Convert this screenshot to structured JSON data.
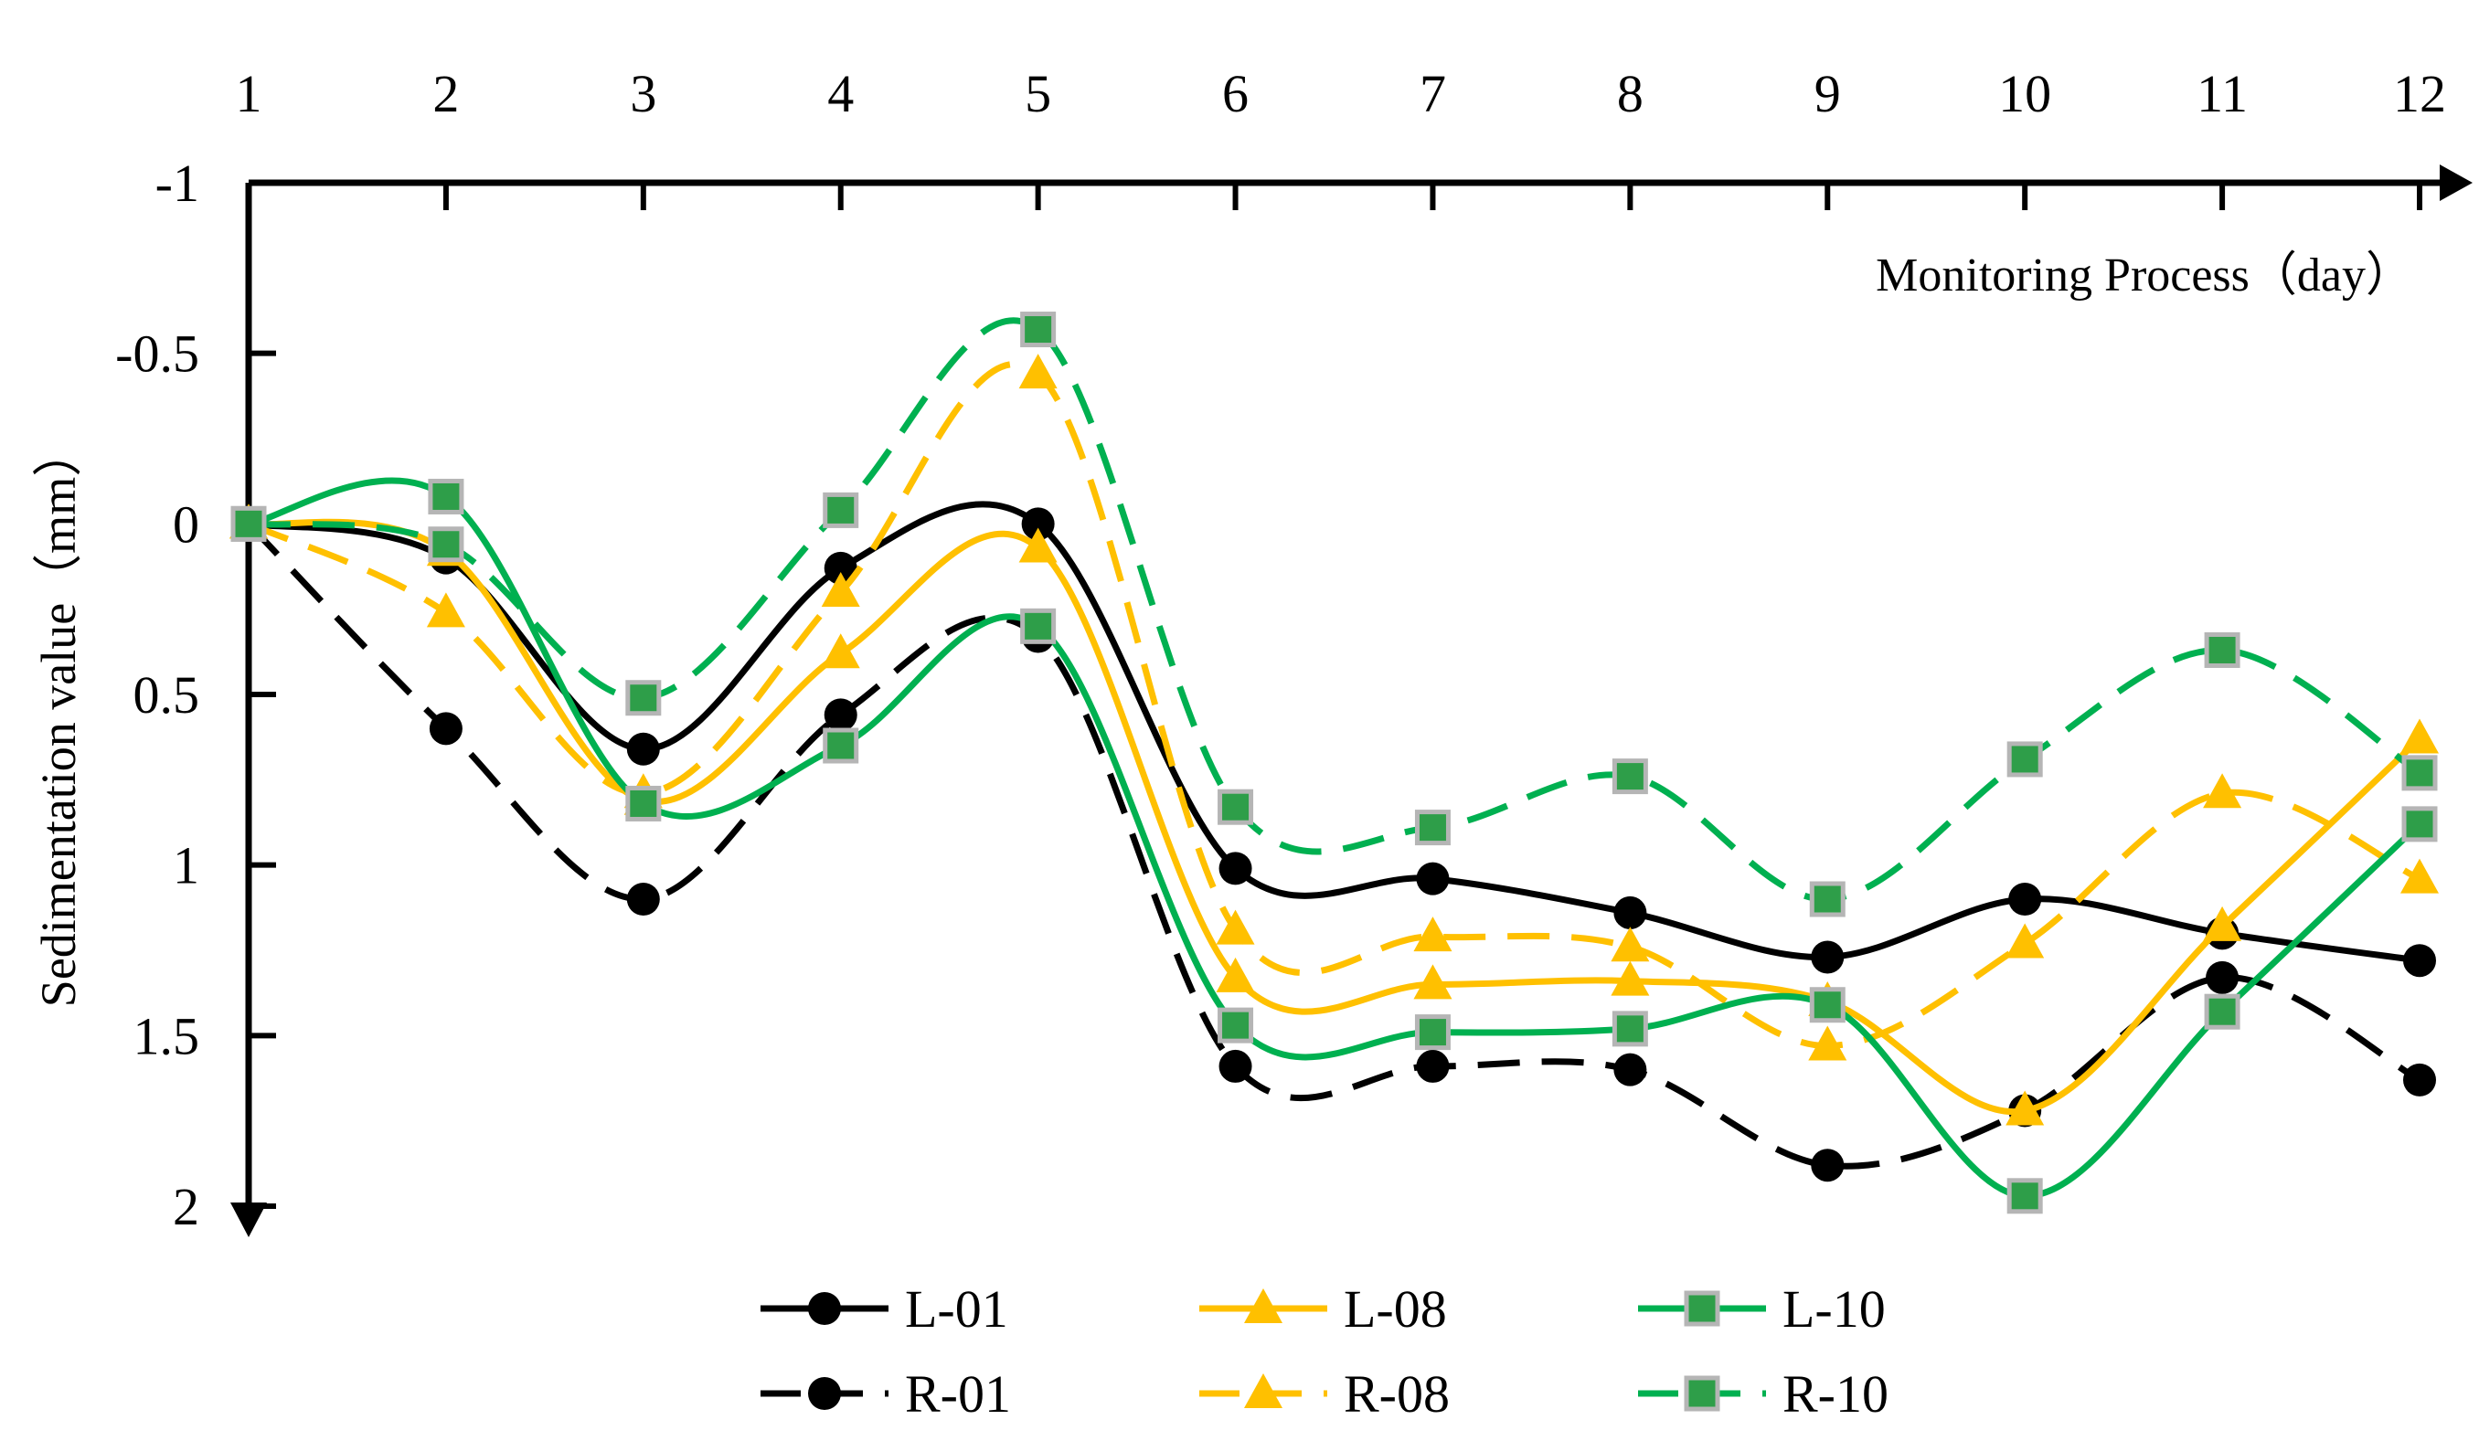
{
  "chart_data": {
    "type": "line",
    "title": "",
    "xlabel": "Monitoring Process（day）",
    "ylabel": "Sedimentation value（mm）",
    "x": [
      1,
      2,
      3,
      4,
      5,
      6,
      7,
      8,
      9,
      10,
      11,
      12
    ],
    "x_tick_labels": [
      "1",
      "2",
      "3",
      "4",
      "5",
      "6",
      "7",
      "8",
      "9",
      "10",
      "11",
      "12"
    ],
    "xlim": [
      1,
      12
    ],
    "ylim": [
      -1,
      2
    ],
    "y_inverted": true,
    "y_ticks": [
      -1,
      -0.5,
      0,
      0.5,
      1,
      1.5,
      2
    ],
    "y_tick_labels": [
      "-1",
      "-0.5",
      "0",
      "0.5",
      "1",
      "1.5",
      "2"
    ],
    "x_axis_position": "top",
    "grid": false,
    "legend_position": "bottom-center",
    "series": [
      {
        "name": "L-01",
        "color": "#000000",
        "dash": "solid",
        "marker": "circle",
        "values": [
          0,
          0.1,
          0.66,
          0.13,
          0,
          1.01,
          1.04,
          1.14,
          1.27,
          1.1,
          1.2,
          1.28
        ]
      },
      {
        "name": "L-08",
        "color": "#FFC000",
        "dash": "solid",
        "marker": "triangle",
        "values": [
          0,
          0.08,
          0.81,
          0.38,
          0.07,
          1.33,
          1.35,
          1.34,
          1.4,
          1.72,
          1.18,
          0.63
        ]
      },
      {
        "name": "L-10",
        "color": "#00B050",
        "dash": "solid",
        "marker": "square",
        "values": [
          0,
          -0.08,
          0.82,
          0.65,
          0.3,
          1.47,
          1.49,
          1.48,
          1.41,
          1.97,
          1.43,
          0.88
        ]
      },
      {
        "name": "R-01",
        "color": "#000000",
        "dash": "dashed",
        "marker": "circle",
        "values": [
          0,
          0.6,
          1.1,
          0.56,
          0.33,
          1.59,
          1.59,
          1.6,
          1.88,
          1.72,
          1.33,
          1.63
        ]
      },
      {
        "name": "R-08",
        "color": "#FFC000",
        "dash": "dashed",
        "marker": "triangle",
        "values": [
          0,
          0.26,
          0.79,
          0.2,
          -0.44,
          1.19,
          1.21,
          1.24,
          1.53,
          1.23,
          0.79,
          1.04
        ]
      },
      {
        "name": "R-10",
        "color": "#00B050",
        "dash": "dashed",
        "marker": "square",
        "values": [
          0,
          0.06,
          0.51,
          -0.04,
          -0.57,
          0.83,
          0.89,
          0.74,
          1.1,
          0.69,
          0.37,
          0.73
        ]
      }
    ]
  }
}
